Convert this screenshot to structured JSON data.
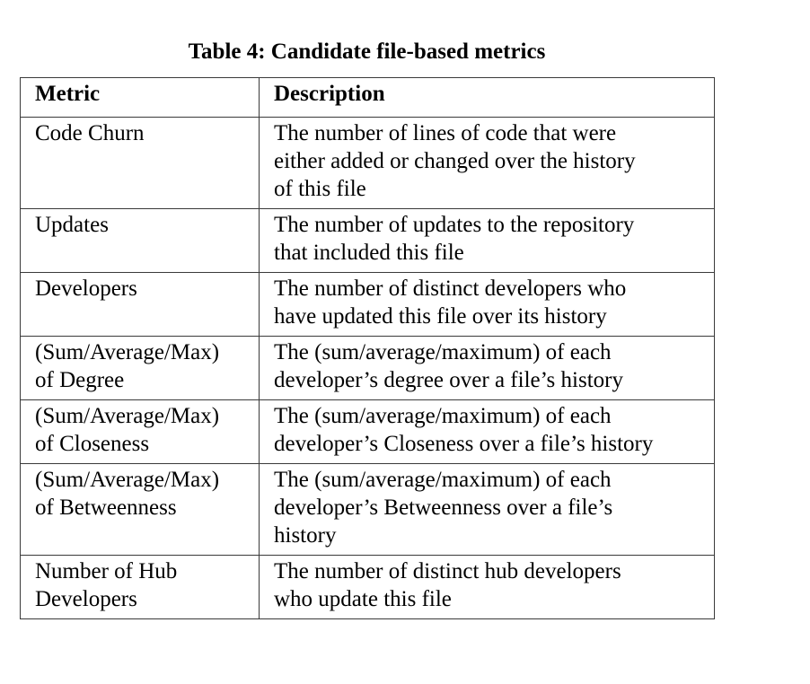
{
  "caption": "Table 4: Candidate file-based metrics",
  "table": {
    "headers": [
      "Metric",
      "Description"
    ],
    "rows": [
      [
        "Code Churn",
        "The number of lines of code that were\neither added or changed over the history\nof this file"
      ],
      [
        "Updates",
        "The number of updates to the repository\nthat included this file"
      ],
      [
        "Developers",
        "The number of distinct developers who\nhave updated this file over its history"
      ],
      [
        "(Sum/Average/Max)\nof Degree",
        "The (sum/average/maximum) of each\ndeveloper’s degree over a file’s history"
      ],
      [
        "(Sum/Average/Max)\nof Closeness",
        "The (sum/average/maximum) of each\ndeveloper’s Closeness over a file’s history"
      ],
      [
        "(Sum/Average/Max)\nof Betweenness",
        "The (sum/average/maximum) of each\ndeveloper’s Betweenness over a file’s\nhistory"
      ],
      [
        "Number of Hub\nDevelopers",
        "The number of distinct hub developers\nwho update this file"
      ]
    ]
  }
}
